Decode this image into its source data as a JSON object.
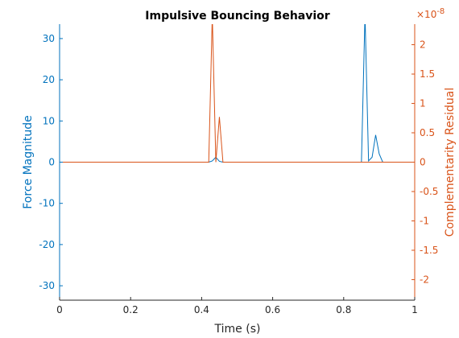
{
  "chart_data": {
    "type": "line",
    "title": "Impulsive Bouncing Behavior",
    "xlabel": "Time (s)",
    "xlim": [
      0,
      1
    ],
    "x_ticks": [
      "0",
      "0.2",
      "0.4",
      "0.6",
      "0.8",
      "1"
    ],
    "grid": false,
    "y_left": {
      "label": "Force Magnitude",
      "lim": [
        -33.5,
        33.5
      ],
      "ticks": [
        "-30",
        "-20",
        "-10",
        "0",
        "10",
        "20",
        "30"
      ],
      "color": "#0072BD"
    },
    "y_right": {
      "label": "Complementarity Residual",
      "lim": [
        -2.35,
        2.35
      ],
      "exponent_label": "×10",
      "exponent": "-8",
      "ticks": [
        "-2",
        "-1.5",
        "-1",
        "-0.5",
        "0",
        "0.5",
        "1",
        "1.5",
        "2"
      ],
      "color": "#D95319"
    },
    "series": [
      {
        "axis": "left",
        "color": "#0072BD",
        "x": [
          0,
          0.42,
          0.43,
          0.44,
          0.45,
          0.46,
          0.85,
          0.86,
          0.87,
          0.88,
          0.89,
          0.9,
          0.91,
          0.92,
          1
        ],
        "y": [
          0,
          0,
          0.3,
          1.2,
          0.2,
          0,
          0,
          36,
          0.3,
          1.2,
          6.6,
          2.0,
          0,
          0,
          0
        ]
      },
      {
        "axis": "right",
        "color": "#D95319",
        "x": [
          0,
          0.42,
          0.43,
          0.44,
          0.45,
          0.46,
          1
        ],
        "y": [
          0,
          0,
          2.5,
          0,
          0.77,
          0,
          0
        ]
      }
    ]
  }
}
